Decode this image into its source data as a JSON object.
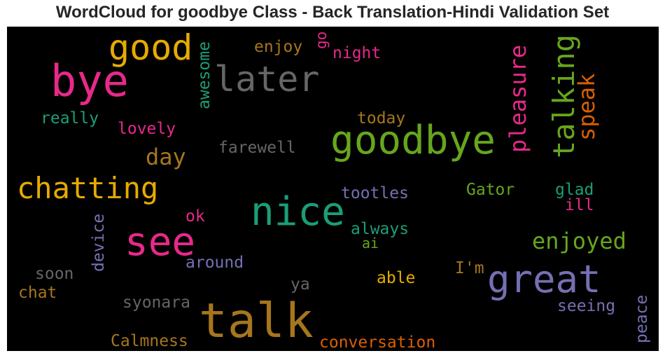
{
  "title": "WordCloud for goodbye Class - Back Translation-Hindi Validation Set",
  "colors": {
    "pink": "#e7298a",
    "green": "#1b9e77",
    "lime": "#66a61e",
    "gold": "#e6ab02",
    "brown": "#a6761d",
    "purple": "#7570b3",
    "orange": "#d95f02",
    "gray": "#666666"
  },
  "words": {
    "bye": "bye",
    "good": "good",
    "later": "later",
    "enjoy": "enjoy",
    "go": "go",
    "night": "night",
    "awesome": "awesome",
    "really": "really",
    "lovely": "lovely",
    "today": "today",
    "goodbye": "goodbye",
    "pleasure": "pleasure",
    "talking": "talking",
    "speak": "speak",
    "day": "day",
    "farewell": "farewell",
    "chatting": "chatting",
    "tootles": "tootles",
    "gator": "Gator",
    "glad": "glad",
    "ill": "ill",
    "nice": "nice",
    "device": "device",
    "ok": "ok",
    "see": "see",
    "always": "always",
    "ai": "ai",
    "enjoyed": "enjoyed",
    "around": "around",
    "soon": "soon",
    "im": "I'm",
    "chat": "chat",
    "ya": "ya",
    "able": "able",
    "great": "great",
    "syonara": "syonara",
    "talk": "talk",
    "seeing": "seeing",
    "peace": "peace",
    "calmness": "Calmness",
    "conversation": "conversation"
  }
}
